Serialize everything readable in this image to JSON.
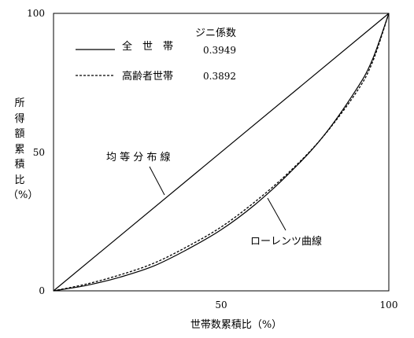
{
  "chart_data": {
    "type": "line",
    "xlabel": "世帯数累積比（%）",
    "ylabel_chars": [
      "所",
      "得",
      "額",
      "累",
      "積",
      "比"
    ],
    "ylabel_unit": "（%）",
    "xlim": [
      0,
      100
    ],
    "ylim": [
      0,
      100
    ],
    "x_ticks": [
      "50",
      "100"
    ],
    "y_ticks": [
      "0",
      "50",
      "100"
    ],
    "grid": false,
    "legend": {
      "position": "top-left",
      "header": "ジニ係数",
      "entries": [
        {
          "label": "全　世　帯",
          "value": "0.3949",
          "style": "solid"
        },
        {
          "label": "高齢者世帯",
          "value": "0.3892",
          "style": "dashed"
        }
      ]
    },
    "annotations": [
      {
        "text": "均 等 分 布 線",
        "target": "equality-line"
      },
      {
        "text": "ローレンツ曲線",
        "target": "lorenz-curves"
      }
    ],
    "equality_line": {
      "x": [
        0,
        100
      ],
      "y": [
        0,
        100
      ]
    },
    "series": [
      {
        "name": "全　世　帯",
        "style": "solid",
        "x": [
          0,
          10,
          20,
          30,
          40,
          50,
          60,
          70,
          80,
          90,
          95,
          100
        ],
        "y": [
          0,
          2,
          5,
          9,
          15,
          22,
          31,
          42,
          55,
          72,
          83,
          100
        ]
      },
      {
        "name": "高齢者世帯",
        "style": "dashed",
        "x": [
          0,
          10,
          20,
          30,
          40,
          50,
          60,
          70,
          80,
          90,
          95,
          100
        ],
        "y": [
          0,
          2.5,
          5.8,
          10,
          16,
          23,
          32,
          42.5,
          55,
          71,
          82,
          100
        ]
      }
    ]
  }
}
